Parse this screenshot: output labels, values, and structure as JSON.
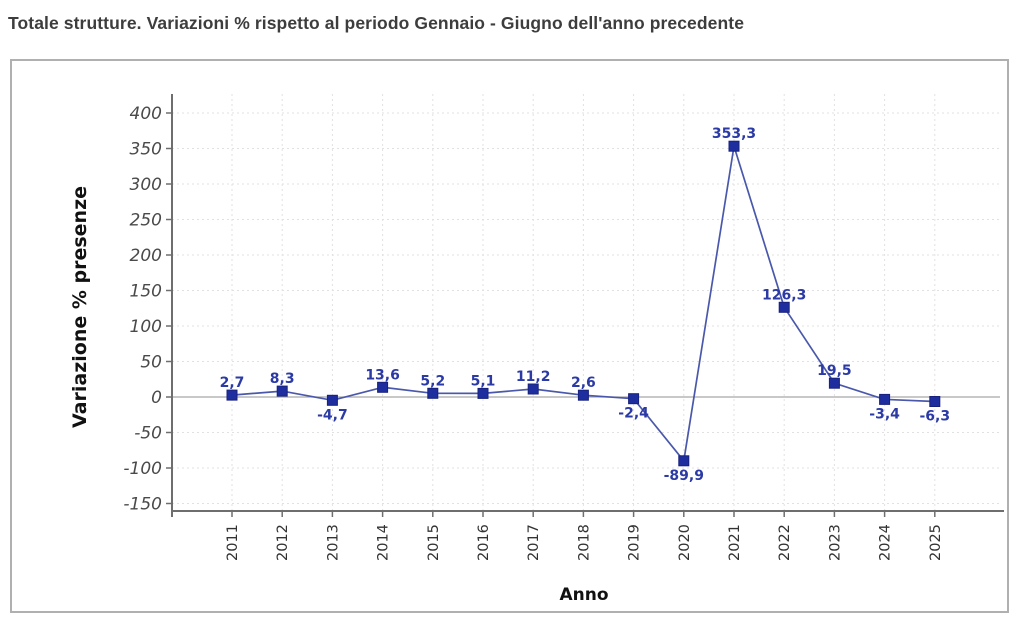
{
  "page": {
    "title": "Totale strutture. Variazioni % rispetto al periodo Gennaio - Giugno dell'anno precedente"
  },
  "chart_data": {
    "type": "line",
    "title": "Totale strutture. Variazioni % rispetto al periodo Gennaio - Giugno dell'anno precedente",
    "xlabel": "Anno",
    "ylabel": "Variazione % presenze",
    "x": [
      "2011",
      "2012",
      "2013",
      "2014",
      "2015",
      "2016",
      "2017",
      "2018",
      "2019",
      "2020",
      "2021",
      "2022",
      "2023",
      "2024",
      "2025"
    ],
    "values": [
      2.7,
      8.3,
      -4.7,
      13.6,
      5.2,
      5.1,
      11.2,
      2.6,
      -2.4,
      -89.9,
      353.3,
      126.3,
      19.5,
      -3.4,
      -6.3
    ],
    "point_labels": [
      "2,7",
      "8,3",
      "-4,7",
      "13,6",
      "5,2",
      "5,1",
      "11,2",
      "2,6",
      "-2,4",
      "-89,9",
      "353,3",
      "126,3",
      "19,5",
      "-3,4",
      "-6,3"
    ],
    "label_side": [
      "above",
      "above",
      "below",
      "above",
      "above",
      "above",
      "above",
      "above",
      "below",
      "below",
      "above",
      "above",
      "above",
      "below",
      "below"
    ],
    "ylim": [
      -150,
      400
    ],
    "yticks": [
      400,
      350,
      300,
      250,
      200,
      150,
      100,
      50,
      0,
      -50,
      -100,
      -150
    ],
    "grid": true,
    "legend": "none",
    "colors": {
      "line": "#4a58ab",
      "marker": "#1f2e9e",
      "marker_border": "#17217d",
      "point_label": "#2b3aa5",
      "grid": "#e1e1e1",
      "zero_line": "#a8a8a8",
      "axis": "#6e6e6e",
      "y_tick_label": "#4a4a4a",
      "x_tick_label": "#333333",
      "axis_title": "#111111",
      "title": "#3d3d3d",
      "box_border": "#b0b0b0"
    }
  }
}
